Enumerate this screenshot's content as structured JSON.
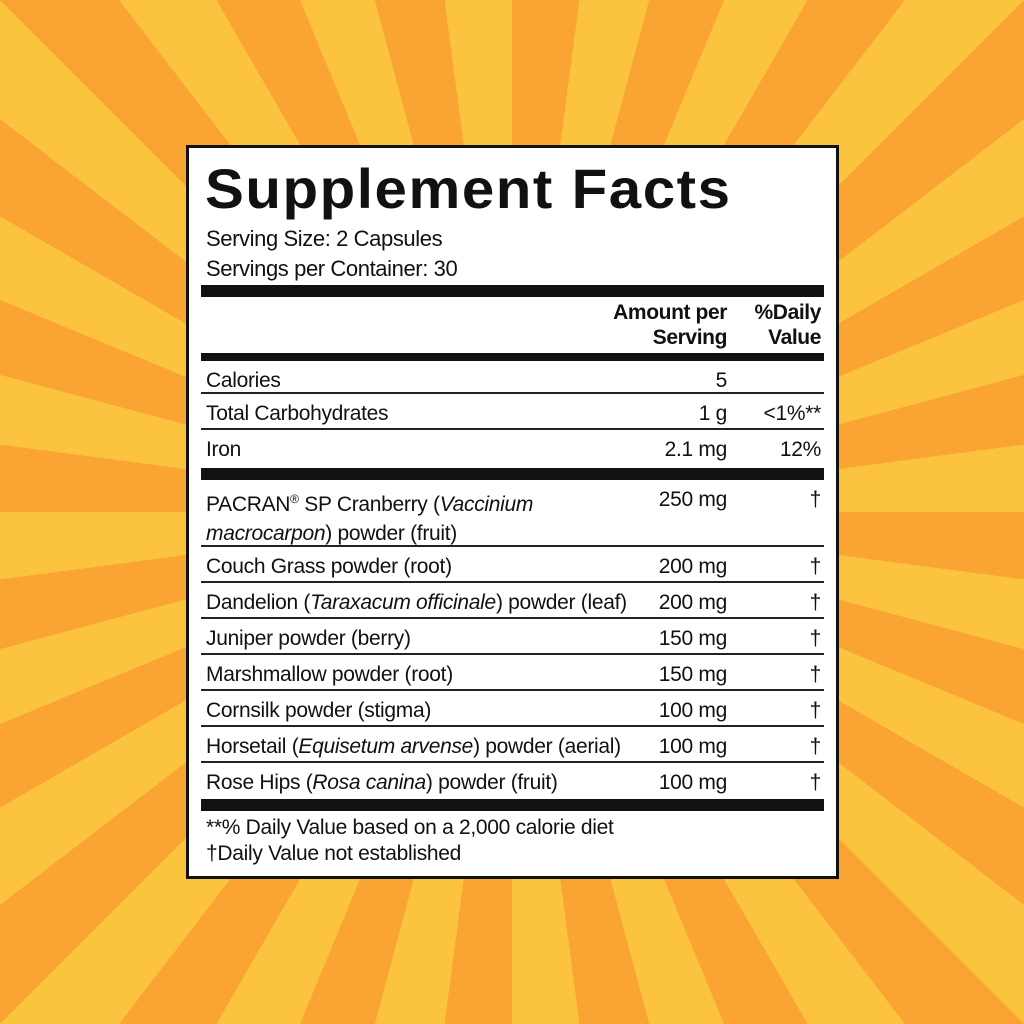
{
  "title": "Supplement Facts",
  "serving_size": "Serving Size:  2 Capsules",
  "servings_per_container": "Servings per Container:  30",
  "headers": {
    "amount_line1": "Amount per",
    "amount_line2": "Serving",
    "dv_line1": "%Daily",
    "dv_line2": "Value"
  },
  "nutrients": [
    {
      "name": "Calories",
      "amount": "5",
      "dv": ""
    },
    {
      "name": "Total Carbohydrates",
      "amount": "1 g",
      "dv": "<1%**"
    },
    {
      "name": "Iron",
      "amount": "2.1 mg",
      "dv": "12%"
    }
  ],
  "ingredients": [
    {
      "pre": "PACRAN",
      "reg": "®",
      "mid": " SP Cranberry (",
      "latin": "Vaccinium macrocarpon",
      "post": ") powder (fruit)",
      "amount": "250 mg",
      "dv": "†"
    },
    {
      "pre": "Couch Grass powder (root)",
      "amount": "200 mg",
      "dv": "†"
    },
    {
      "pre": "Dandelion (",
      "latin": "Taraxacum officinale",
      "post": ") powder (leaf)",
      "amount": "200 mg",
      "dv": "†"
    },
    {
      "pre": "Juniper powder (berry)",
      "amount": "150 mg",
      "dv": "†"
    },
    {
      "pre": "Marshmallow powder (root)",
      "amount": "150 mg",
      "dv": "†"
    },
    {
      "pre": "Cornsilk powder (stigma)",
      "amount": "100 mg",
      "dv": "†"
    },
    {
      "pre": "Horsetail (",
      "latin": "Equisetum arvense",
      "post": ") powder (aerial)",
      "amount": "100 mg",
      "dv": "†"
    },
    {
      "pre": "Rose Hips (",
      "latin": "Rosa canina",
      "post": ") powder (fruit)",
      "amount": "100 mg",
      "dv": "†"
    }
  ],
  "footnotes": [
    "**% Daily Value based on a 2,000 calorie diet",
    "†Daily Value not established"
  ],
  "colors": {
    "background_orange": "#f9a433",
    "background_yellow": "#fcc33e",
    "label_ink": "#111111"
  }
}
